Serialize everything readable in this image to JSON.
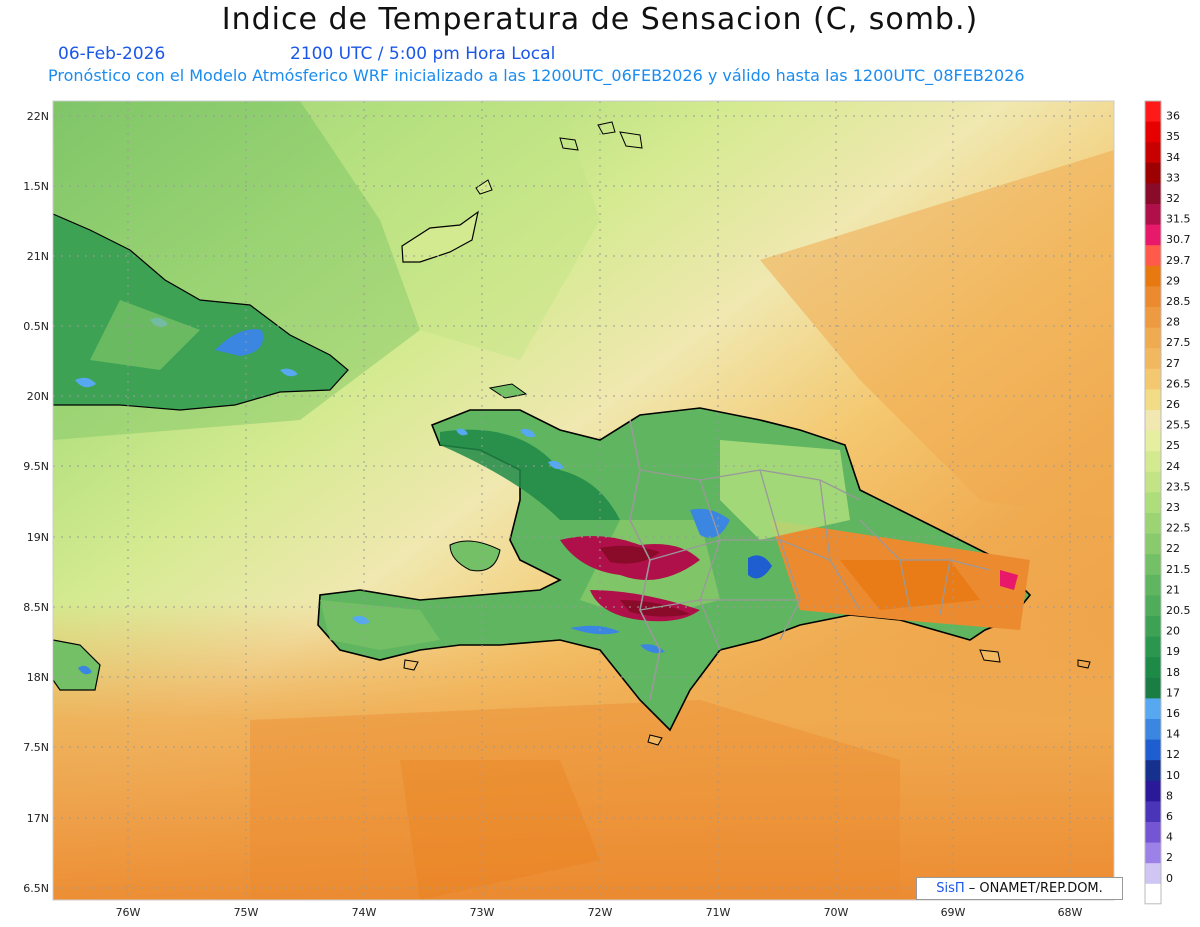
{
  "header": {
    "title": "Indice de Temperatura de Sensacion (C, somb.)",
    "date": "06-Feb-2026",
    "time": "2100 UTC / 5:00 pm Hora Local",
    "model_info": "Pronóstico con el Modelo Atmósferico WRF inicializado a las 1200UTC_06FEB2026 y válido hasta las  1200UTC_08FEB2026"
  },
  "axes": {
    "lat_labels": [
      "22N",
      "1.5N",
      "21N",
      "0.5N",
      "20N",
      "9.5N",
      "19N",
      "8.5N",
      "18N",
      "7.5N",
      "17N",
      "6.5N"
    ],
    "lon_labels": [
      "76W",
      "75W",
      "74W",
      "73W",
      "72W",
      "71W",
      "70W",
      "69W",
      "68W"
    ]
  },
  "colorbar": {
    "levels": [
      {
        "label": "36",
        "color": "#ff1a1a"
      },
      {
        "label": "35",
        "color": "#e60000"
      },
      {
        "label": "34",
        "color": "#c80000"
      },
      {
        "label": "33",
        "color": "#9c0000"
      },
      {
        "label": "32",
        "color": "#8a0a2a"
      },
      {
        "label": "31.5",
        "color": "#b0104a"
      },
      {
        "label": "30.7",
        "color": "#e8186a"
      },
      {
        "label": "29.7",
        "color": "#ff5a4a"
      },
      {
        "label": "29",
        "color": "#e87810"
      },
      {
        "label": "28.5",
        "color": "#ec8a30"
      },
      {
        "label": "28",
        "color": "#ee9a40"
      },
      {
        "label": "27.5",
        "color": "#f0aa50"
      },
      {
        "label": "27",
        "color": "#f2b860"
      },
      {
        "label": "26.5",
        "color": "#f4c870"
      },
      {
        "label": "26",
        "color": "#f2dc86"
      },
      {
        "label": "25.5",
        "color": "#f0e8b0"
      },
      {
        "label": "25",
        "color": "#e6eea0"
      },
      {
        "label": "24",
        "color": "#d4ea90"
      },
      {
        "label": "23.5",
        "color": "#c2e486"
      },
      {
        "label": "23",
        "color": "#aede7c"
      },
      {
        "label": "22.5",
        "color": "#9cd474"
      },
      {
        "label": "22",
        "color": "#88ca6c"
      },
      {
        "label": "21.5",
        "color": "#74c066"
      },
      {
        "label": "21",
        "color": "#60b660"
      },
      {
        "label": "20.5",
        "color": "#4eac5a"
      },
      {
        "label": "20",
        "color": "#3ea254"
      },
      {
        "label": "19",
        "color": "#2a964e"
      },
      {
        "label": "18",
        "color": "#1e8a48"
      },
      {
        "label": "17",
        "color": "#1a7e44"
      },
      {
        "label": "16",
        "color": "#56a8f0"
      },
      {
        "label": "14",
        "color": "#3a86e0"
      },
      {
        "label": "12",
        "color": "#1f5ed0"
      },
      {
        "label": "10",
        "color": "#16308e"
      },
      {
        "label": "8",
        "color": "#2a1a9a"
      },
      {
        "label": "6",
        "color": "#4a34b8"
      },
      {
        "label": "4",
        "color": "#7456d4"
      },
      {
        "label": "2",
        "color": "#9c82e8"
      },
      {
        "label": "0",
        "color": "#cfc6f4"
      }
    ]
  },
  "credit": {
    "logo": "SisΠ",
    "text": "– ONAMET/REP.DOM."
  }
}
